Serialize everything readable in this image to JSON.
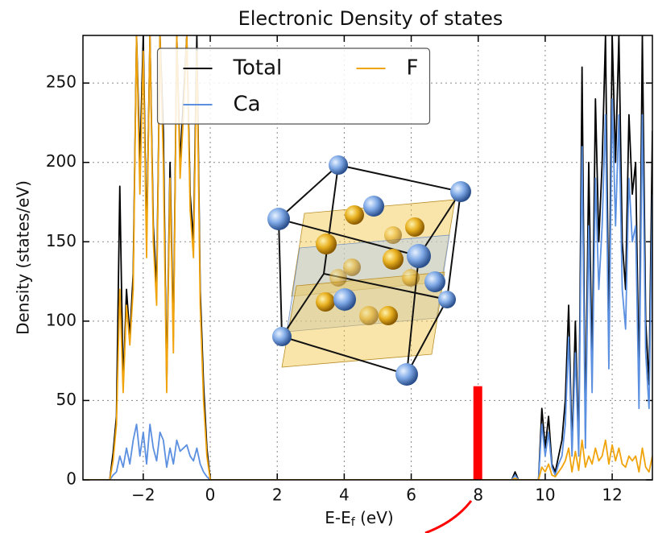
{
  "chart_data": {
    "type": "line",
    "title": "Electronic Density of states",
    "xlabel": [
      "E-E",
      "f",
      " (eV)"
    ],
    "ylabel": "Density (states/eV)",
    "x": [
      -3.7,
      -3.0,
      -2.9,
      -2.8,
      -2.7,
      -2.6,
      -2.5,
      -2.4,
      -2.3,
      -2.2,
      -2.1,
      -2.0,
      -1.9,
      -1.8,
      -1.7,
      -1.6,
      -1.5,
      -1.4,
      -1.3,
      -1.2,
      -1.1,
      -1.0,
      -0.9,
      -0.8,
      -0.7,
      -0.6,
      -0.5,
      -0.4,
      -0.3,
      -0.2,
      -0.1,
      0.0,
      9.0,
      9.1,
      9.2,
      9.8,
      9.9,
      10.0,
      10.1,
      10.2,
      10.3,
      10.4,
      10.5,
      10.6,
      10.7,
      10.8,
      10.9,
      11.0,
      11.1,
      11.2,
      11.3,
      11.4,
      11.5,
      11.6,
      11.7,
      11.8,
      11.9,
      12.0,
      12.1,
      12.2,
      12.3,
      12.4,
      12.5,
      12.6,
      12.7,
      12.8,
      12.9,
      13.0,
      13.1,
      13.2
    ],
    "series": [
      {
        "name": "Total",
        "color": "#000000",
        "values": [
          0,
          0,
          17,
          40,
          185,
          60,
          120,
          90,
          130,
          280,
          200,
          280,
          150,
          280,
          160,
          120,
          280,
          220,
          60,
          200,
          90,
          280,
          200,
          240,
          280,
          180,
          150,
          280,
          120,
          60,
          20,
          0,
          0,
          5,
          0,
          0,
          45,
          20,
          40,
          10,
          5,
          15,
          25,
          50,
          110,
          20,
          100,
          20,
          260,
          30,
          200,
          70,
          240,
          150,
          200,
          280,
          90,
          280,
          200,
          280,
          150,
          120,
          230,
          180,
          200,
          60,
          280,
          100,
          60,
          220
        ]
      },
      {
        "name": "Ca",
        "color": "#5b8fe0",
        "values": [
          0,
          0,
          3,
          5,
          15,
          8,
          20,
          10,
          25,
          35,
          15,
          30,
          10,
          35,
          20,
          12,
          30,
          25,
          8,
          20,
          10,
          25,
          18,
          20,
          22,
          15,
          12,
          20,
          10,
          5,
          2,
          0,
          0,
          3,
          0,
          0,
          35,
          15,
          30,
          8,
          3,
          10,
          15,
          35,
          90,
          15,
          80,
          15,
          210,
          20,
          160,
          55,
          190,
          120,
          160,
          230,
          70,
          240,
          160,
          230,
          120,
          95,
          190,
          150,
          160,
          45,
          230,
          80,
          45,
          180
        ]
      },
      {
        "name": "F",
        "color": "#f0a30a",
        "values": [
          0,
          0,
          12,
          35,
          120,
          55,
          110,
          85,
          120,
          280,
          180,
          270,
          140,
          280,
          150,
          110,
          280,
          200,
          55,
          190,
          80,
          280,
          190,
          230,
          280,
          170,
          140,
          270,
          110,
          50,
          15,
          0,
          0,
          1,
          0,
          0,
          8,
          5,
          10,
          3,
          2,
          5,
          8,
          12,
          20,
          5,
          18,
          6,
          25,
          8,
          15,
          10,
          20,
          12,
          15,
          25,
          10,
          22,
          12,
          20,
          10,
          8,
          15,
          12,
          15,
          5,
          20,
          8,
          5,
          15
        ]
      }
    ],
    "xlim": [
      -3.8,
      13.2
    ],
    "ylim": [
      0,
      280
    ],
    "xticks": [
      {
        "value": -2,
        "label": "−2"
      },
      0,
      2,
      4,
      6,
      8,
      10,
      12
    ],
    "yticks": [
      0,
      50,
      100,
      150,
      200,
      250
    ],
    "grid": true,
    "legend": "upper center",
    "annotation_bar": {
      "x": 8,
      "value": 59,
      "color": "#ff0000"
    }
  }
}
